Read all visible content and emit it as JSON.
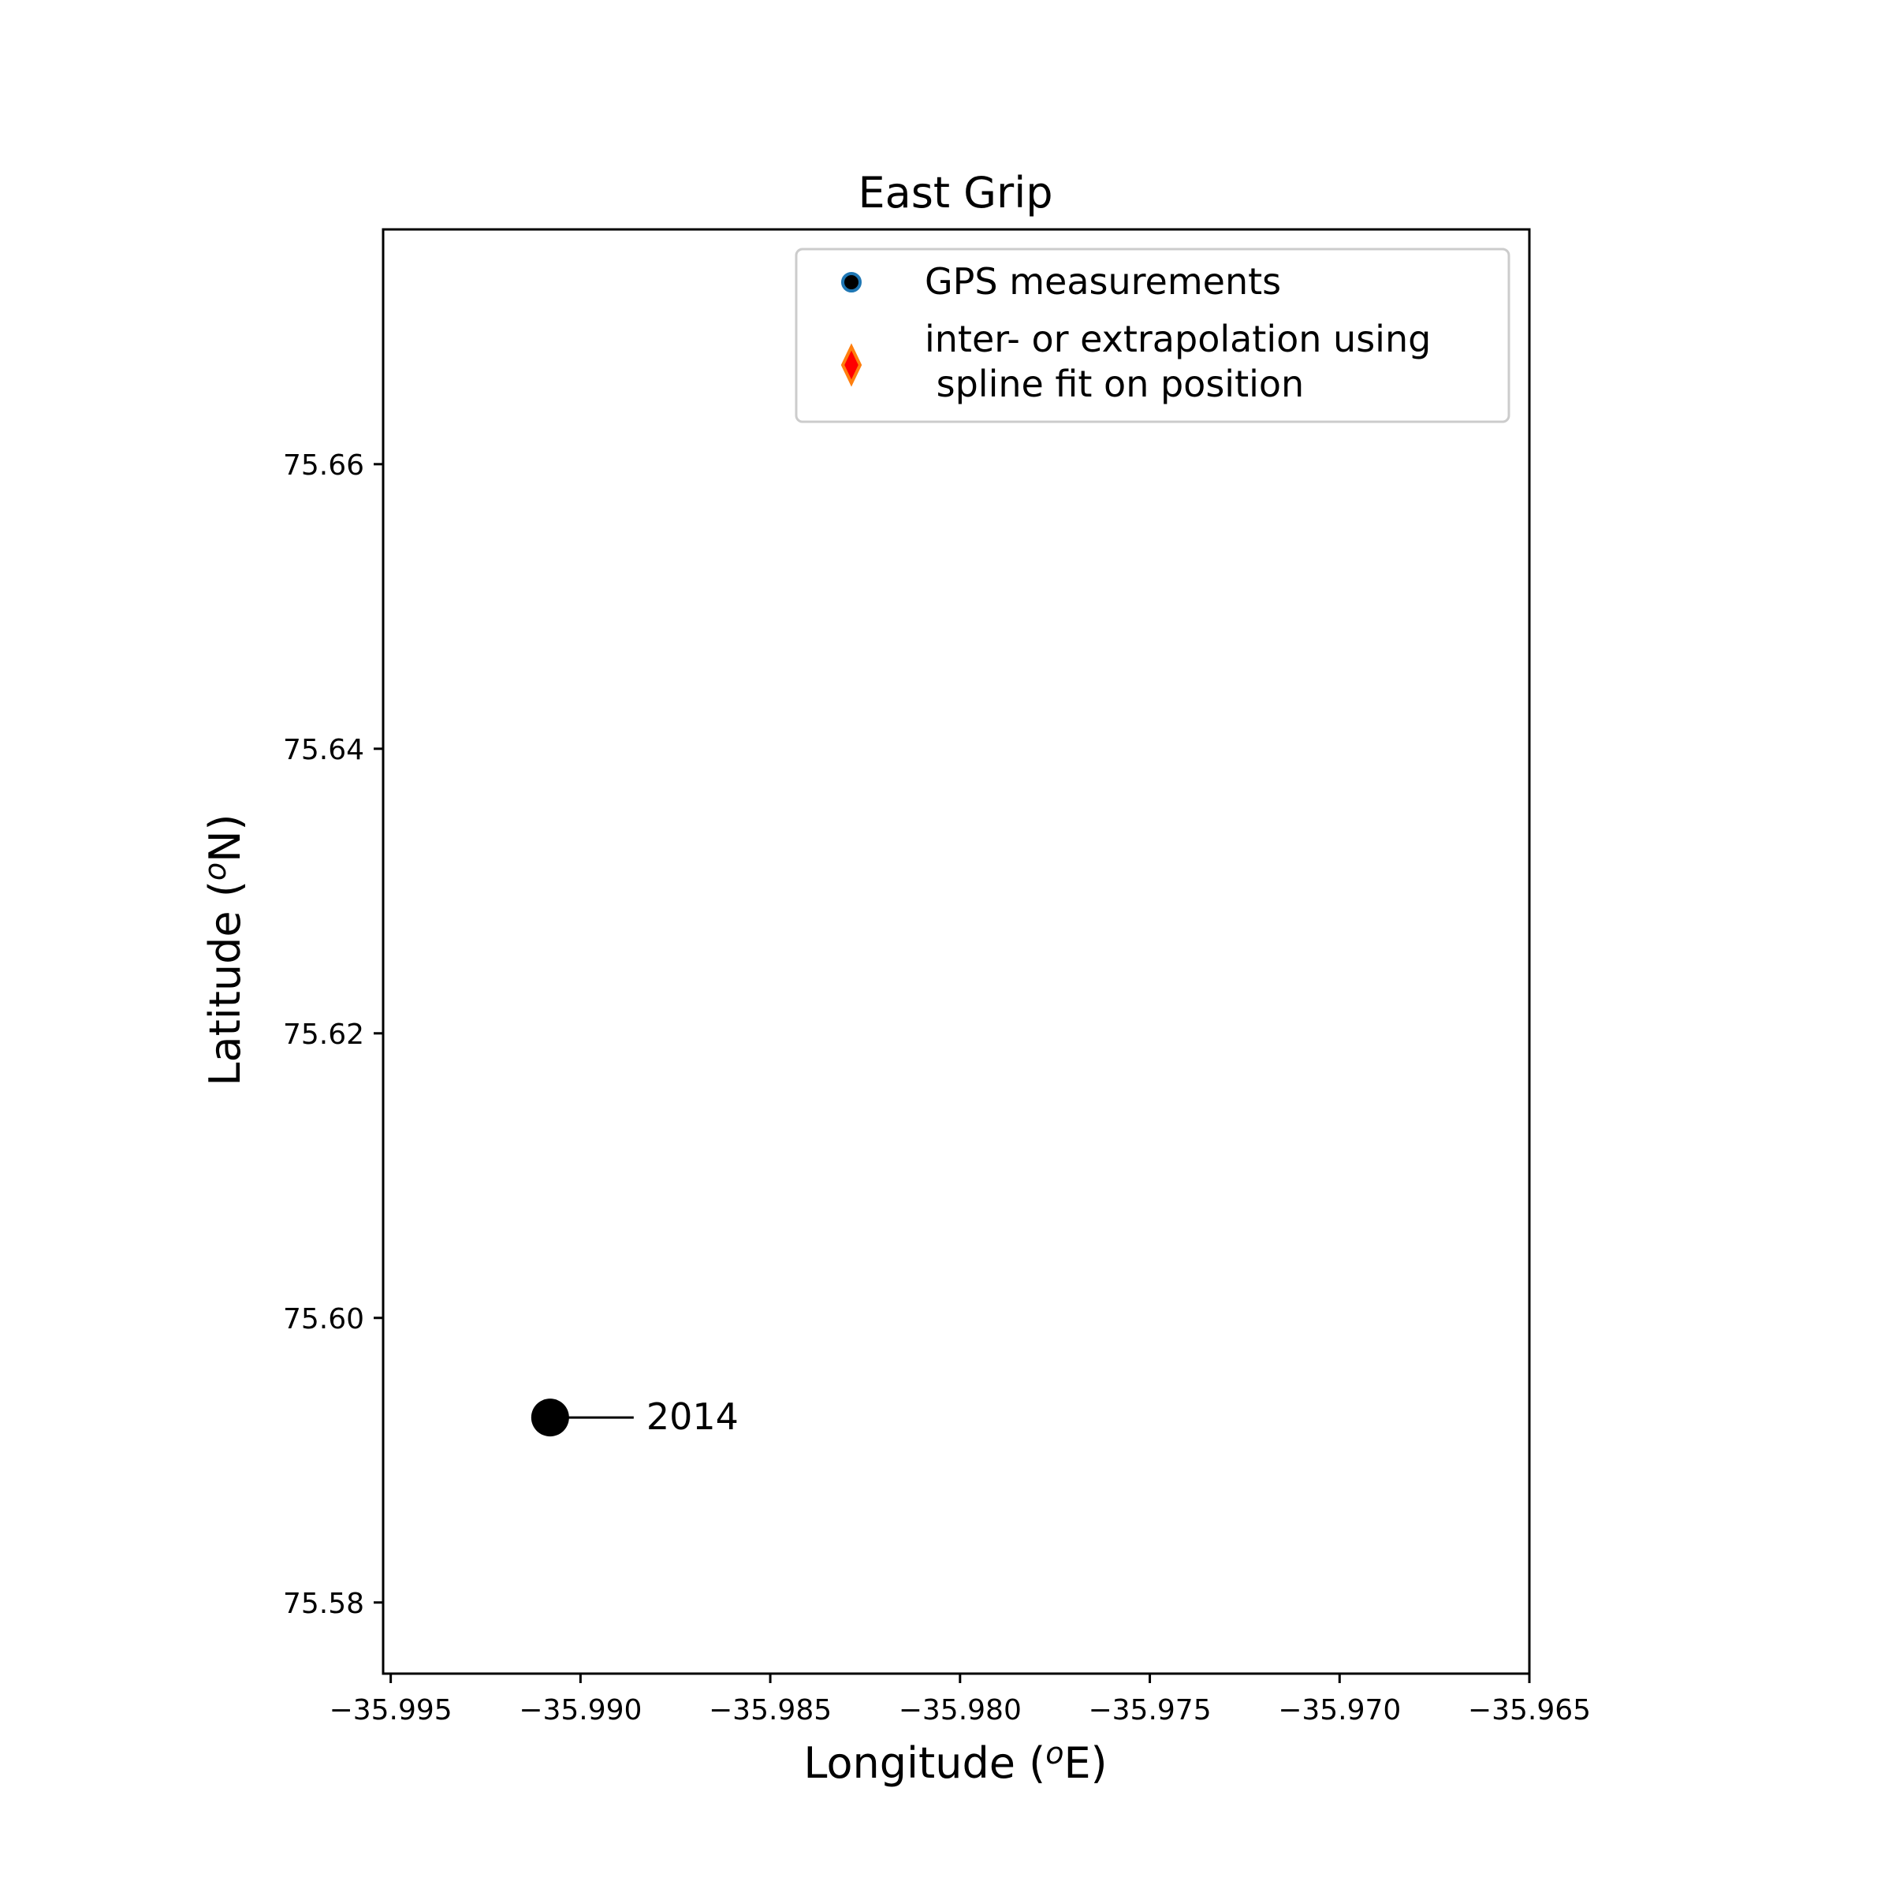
{
  "chart_data": {
    "type": "scatter",
    "title": "East Grip",
    "xlabel": "Longitude (",
    "xlabel_sup": "o",
    "xlabel_suffix": "E)",
    "ylabel": "Latitude (",
    "ylabel_sup": "o",
    "ylabel_suffix": "N)",
    "xlim": [
      -35.9952,
      -35.965
    ],
    "ylim": [
      75.575,
      75.6765
    ],
    "xticks": [
      -35.995,
      -35.99,
      -35.985,
      -35.98,
      -35.975,
      -35.97,
      -35.965
    ],
    "xtick_labels": [
      "−35.995",
      "−35.990",
      "−35.985",
      "−35.980",
      "−35.975",
      "−35.970",
      "−35.965"
    ],
    "yticks": [
      75.58,
      75.6,
      75.62,
      75.64,
      75.66
    ],
    "ytick_labels": [
      "75.58",
      "75.60",
      "75.62",
      "75.64",
      "75.66"
    ],
    "grid": false,
    "legend_placement": "top-right",
    "legend": [
      {
        "label_lines": [
          "GPS measurements"
        ],
        "marker": "circle",
        "color": "#000000",
        "edge": "#1f77b4"
      },
      {
        "label_lines": [
          "inter- or extrapolation using",
          " spline fit on position"
        ],
        "marker": "diamond",
        "color": "#ff0000",
        "edge": "#ff7f0e"
      }
    ],
    "series": [
      {
        "name": "GPS measurements",
        "points": [
          {
            "x": -35.9908,
            "y": 75.593,
            "label": "2014"
          }
        ],
        "color": "#000000"
      }
    ]
  }
}
